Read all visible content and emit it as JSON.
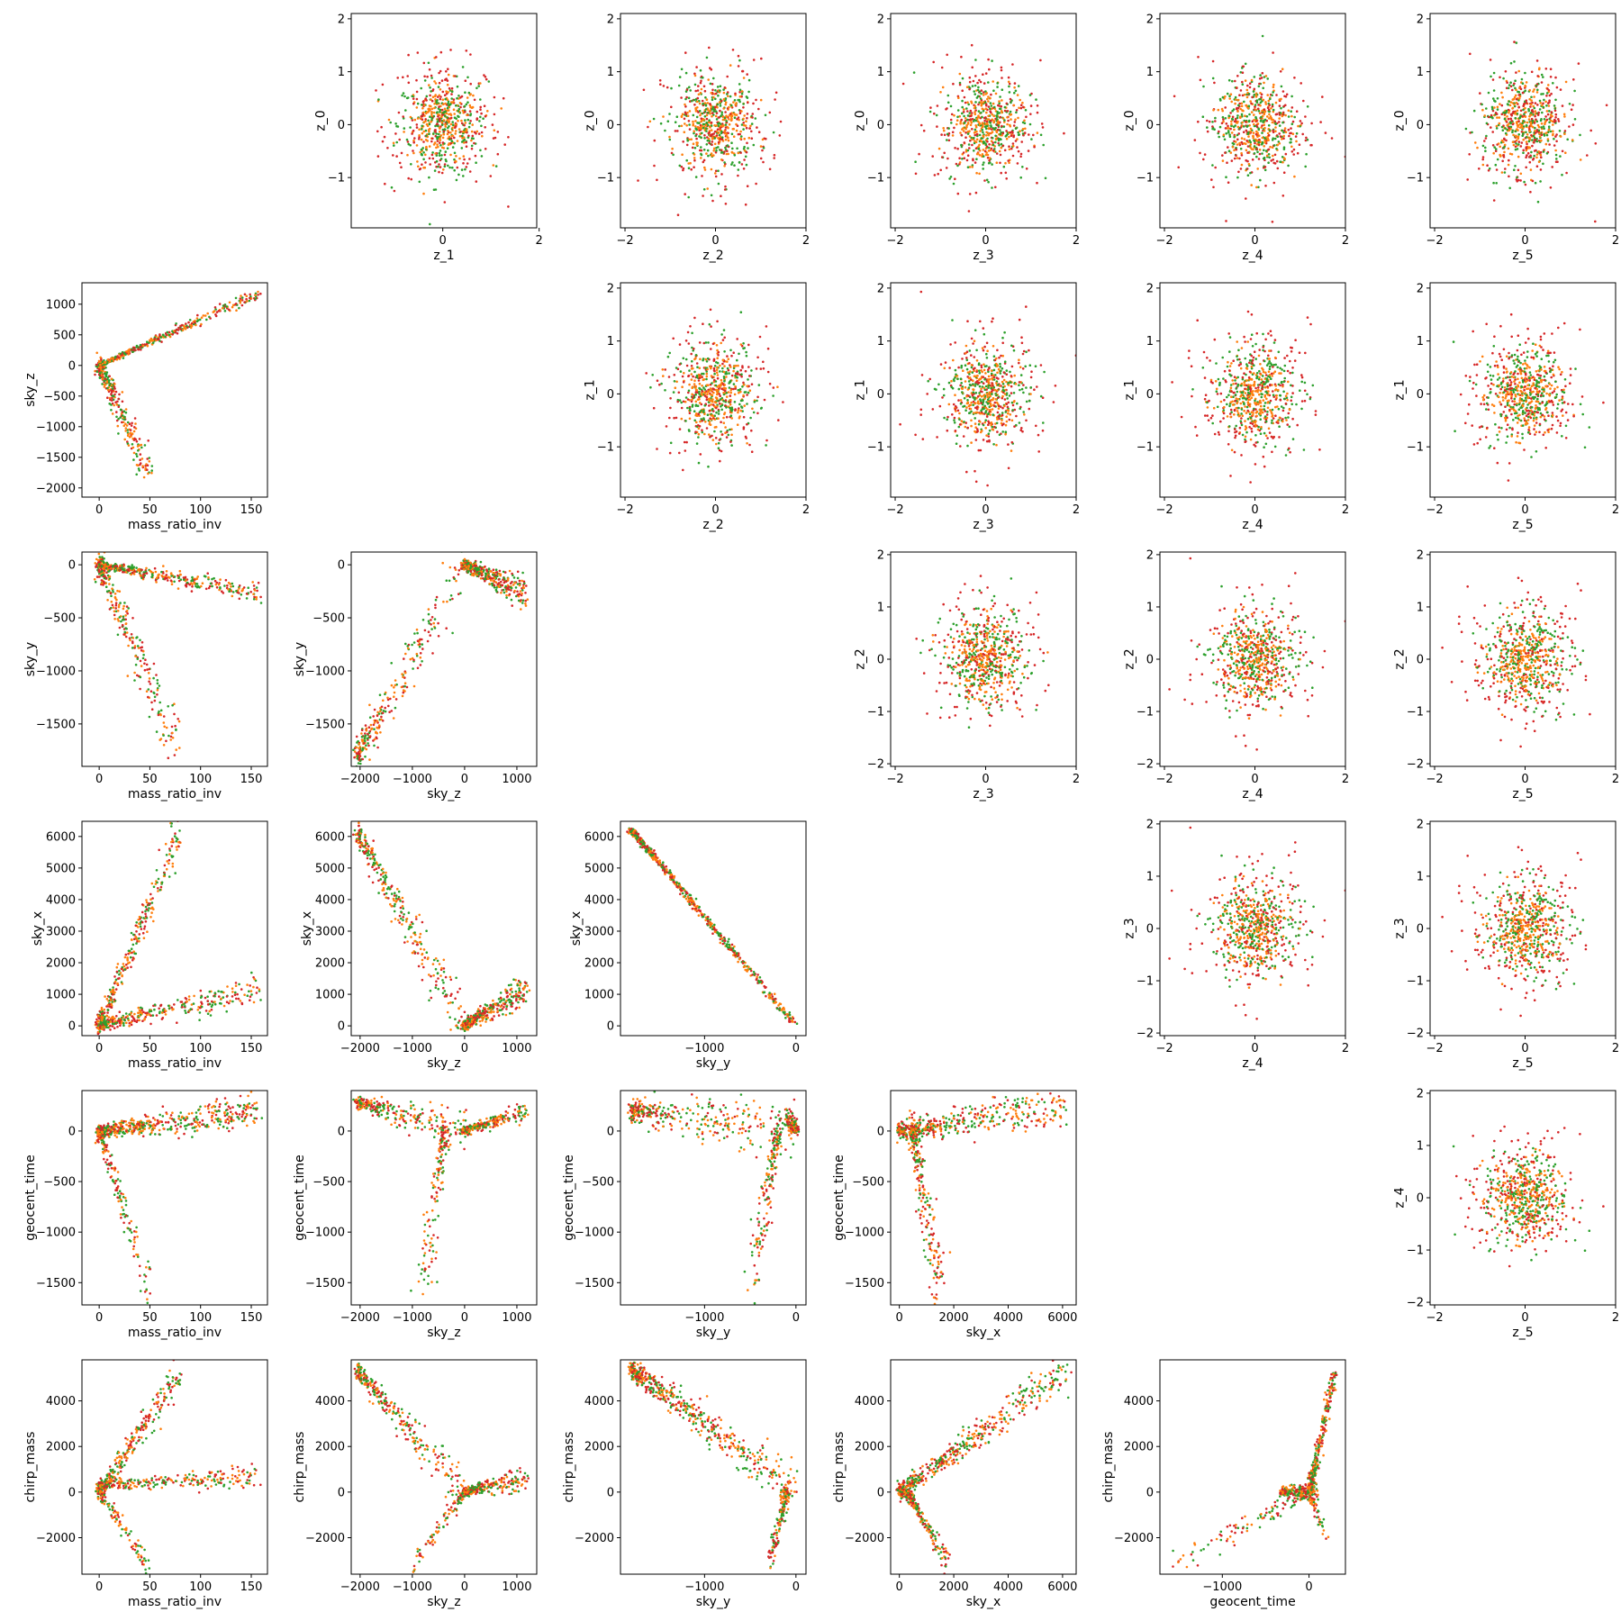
{
  "figure": {
    "type": "pair-scatter-matrix",
    "point_colors": [
      "#2ca02c",
      "#ff7f0e",
      "#d62728"
    ],
    "background": "#ffffff"
  },
  "chart_data": [
    {
      "type": "scatter",
      "row": 0,
      "col": 1,
      "xlabel": "z_1",
      "ylabel": "z_0",
      "xlim": [
        -1.9,
        1.95
      ],
      "ylim": [
        -1.95,
        2.1
      ],
      "xticks": [
        0,
        2
      ],
      "yticks": [
        -1,
        0,
        1,
        2
      ],
      "shape": "gaussian",
      "spread": 0.55
    },
    {
      "type": "scatter",
      "row": 0,
      "col": 2,
      "xlabel": "z_2",
      "ylabel": "z_0",
      "xlim": [
        -2.1,
        2.0
      ],
      "ylim": [
        -1.95,
        2.1
      ],
      "xticks": [
        -2,
        0,
        2
      ],
      "yticks": [
        -1,
        0,
        1,
        2
      ],
      "shape": "gaussian",
      "spread": 0.55
    },
    {
      "type": "scatter",
      "row": 0,
      "col": 3,
      "xlabel": "z_3",
      "ylabel": "z_0",
      "xlim": [
        -2.1,
        2.0
      ],
      "ylim": [
        -1.95,
        2.1
      ],
      "xticks": [
        -2,
        0,
        2
      ],
      "yticks": [
        -1,
        0,
        1,
        2
      ],
      "shape": "gaussian",
      "spread": 0.55
    },
    {
      "type": "scatter",
      "row": 0,
      "col": 4,
      "xlabel": "z_4",
      "ylabel": "z_0",
      "xlim": [
        -2.1,
        2.0
      ],
      "ylim": [
        -1.95,
        2.1
      ],
      "xticks": [
        -2,
        0,
        2
      ],
      "yticks": [
        -1,
        0,
        1,
        2
      ],
      "shape": "gaussian",
      "spread": 0.55
    },
    {
      "type": "scatter",
      "row": 0,
      "col": 5,
      "xlabel": "z_5",
      "ylabel": "z_0",
      "xlim": [
        -2.1,
        2.0
      ],
      "ylim": [
        -1.95,
        2.1
      ],
      "xticks": [
        -2,
        0,
        2
      ],
      "yticks": [
        -1,
        0,
        1,
        2
      ],
      "shape": "gaussian",
      "spread": 0.55
    },
    {
      "type": "scatter",
      "row": 1,
      "col": 0,
      "xlabel": "mass_ratio_inv",
      "ylabel": "sky_z",
      "xlim": [
        -17,
        166
      ],
      "ylim": [
        -2150,
        1350
      ],
      "xticks": [
        0,
        50,
        100,
        150
      ],
      "yticks": [
        -2000,
        -1500,
        -1000,
        -500,
        0,
        500,
        1000
      ],
      "shape": "trend",
      "segments": [
        [
          0,
          0,
          160,
          1200,
          0.55,
          40
        ],
        [
          0,
          0,
          50,
          -1800,
          0.45,
          220
        ]
      ]
    },
    {
      "type": "scatter",
      "row": 1,
      "col": 2,
      "xlabel": "z_2",
      "ylabel": "z_1",
      "xlim": [
        -2.1,
        2.0
      ],
      "ylim": [
        -1.95,
        2.1
      ],
      "xticks": [
        -2,
        0,
        2
      ],
      "yticks": [
        -1,
        0,
        1,
        2
      ],
      "shape": "gaussian",
      "spread": 0.55
    },
    {
      "type": "scatter",
      "row": 1,
      "col": 3,
      "xlabel": "z_3",
      "ylabel": "z_1",
      "xlim": [
        -2.1,
        2.0
      ],
      "ylim": [
        -1.95,
        2.1
      ],
      "xticks": [
        -2,
        0,
        2
      ],
      "yticks": [
        -1,
        0,
        1,
        2
      ],
      "shape": "gaussian",
      "spread": 0.55
    },
    {
      "type": "scatter",
      "row": 1,
      "col": 4,
      "xlabel": "z_4",
      "ylabel": "z_1",
      "xlim": [
        -2.1,
        2.0
      ],
      "ylim": [
        -1.95,
        2.1
      ],
      "xticks": [
        -2,
        0,
        2
      ],
      "yticks": [
        -1,
        0,
        1,
        2
      ],
      "shape": "gaussian",
      "spread": 0.55
    },
    {
      "type": "scatter",
      "row": 1,
      "col": 5,
      "xlabel": "z_5",
      "ylabel": "z_1",
      "xlim": [
        -2.1,
        2.0
      ],
      "ylim": [
        -1.95,
        2.1
      ],
      "xticks": [
        -2,
        0,
        2
      ],
      "yticks": [
        -1,
        0,
        1,
        2
      ],
      "shape": "gaussian",
      "spread": 0.55
    },
    {
      "type": "scatter",
      "row": 2,
      "col": 0,
      "xlabel": "mass_ratio_inv",
      "ylabel": "sky_y",
      "xlim": [
        -17,
        166
      ],
      "ylim": [
        -1900,
        120
      ],
      "xticks": [
        0,
        50,
        100,
        150
      ],
      "yticks": [
        -1500,
        -1000,
        -500,
        0
      ],
      "shape": "trend",
      "segments": [
        [
          0,
          0,
          160,
          -270,
          0.55,
          40
        ],
        [
          0,
          0,
          80,
          -1800,
          0.45,
          200
        ]
      ]
    },
    {
      "type": "scatter",
      "row": 2,
      "col": 1,
      "xlabel": "sky_z",
      "ylabel": "sky_y",
      "xlim": [
        -2170,
        1380
      ],
      "ylim": [
        -1900,
        120
      ],
      "xticks": [
        -2000,
        -1000,
        0,
        1000
      ],
      "yticks": [
        -1500,
        -1000,
        -500,
        0
      ],
      "shape": "trend",
      "segments": [
        [
          -2050,
          -1800,
          0,
          0,
          0.4,
          180
        ],
        [
          0,
          0,
          1200,
          -270,
          0.6,
          60
        ]
      ]
    },
    {
      "type": "scatter",
      "row": 2,
      "col": 3,
      "xlabel": "z_3",
      "ylabel": "z_2",
      "xlim": [
        -2.1,
        2.0
      ],
      "ylim": [
        -2.05,
        2.05
      ],
      "xticks": [
        -2,
        0,
        2
      ],
      "yticks": [
        -2,
        -1,
        0,
        1,
        2
      ],
      "shape": "gaussian",
      "spread": 0.55
    },
    {
      "type": "scatter",
      "row": 2,
      "col": 4,
      "xlabel": "z_4",
      "ylabel": "z_2",
      "xlim": [
        -2.1,
        2.0
      ],
      "ylim": [
        -2.05,
        2.05
      ],
      "xticks": [
        -2,
        0,
        2
      ],
      "yticks": [
        -2,
        -1,
        0,
        1,
        2
      ],
      "shape": "gaussian",
      "spread": 0.55
    },
    {
      "type": "scatter",
      "row": 2,
      "col": 5,
      "xlabel": "z_5",
      "ylabel": "z_2",
      "xlim": [
        -2.1,
        2.0
      ],
      "ylim": [
        -2.05,
        2.05
      ],
      "xticks": [
        -2,
        0,
        2
      ],
      "yticks": [
        -2,
        -1,
        0,
        1,
        2
      ],
      "shape": "gaussian",
      "spread": 0.55
    },
    {
      "type": "scatter",
      "row": 3,
      "col": 0,
      "xlabel": "mass_ratio_inv",
      "ylabel": "sky_x",
      "xlim": [
        -17,
        166
      ],
      "ylim": [
        -310,
        6480
      ],
      "xticks": [
        0,
        50,
        100,
        150
      ],
      "yticks": [
        0,
        1000,
        2000,
        3000,
        4000,
        5000,
        6000
      ],
      "shape": "trend",
      "segments": [
        [
          0,
          0,
          80,
          6200,
          0.45,
          400
        ],
        [
          0,
          0,
          160,
          1200,
          0.55,
          200
        ]
      ]
    },
    {
      "type": "scatter",
      "row": 3,
      "col": 1,
      "xlabel": "sky_z",
      "ylabel": "sky_x",
      "xlim": [
        -2170,
        1380
      ],
      "ylim": [
        -310,
        6480
      ],
      "xticks": [
        -2000,
        -1000,
        0,
        1000
      ],
      "yticks": [
        0,
        1000,
        2000,
        3000,
        4000,
        5000,
        6000
      ],
      "shape": "trend",
      "segments": [
        [
          -2050,
          6100,
          0,
          0,
          0.45,
          500
        ],
        [
          0,
          0,
          1200,
          1200,
          0.55,
          200
        ]
      ]
    },
    {
      "type": "scatter",
      "row": 3,
      "col": 2,
      "xlabel": "sky_y",
      "ylabel": "sky_x",
      "xlim": [
        -1920,
        110
      ],
      "ylim": [
        -310,
        6480
      ],
      "xticks": [
        -1000,
        0
      ],
      "yticks": [
        0,
        1000,
        2000,
        3000,
        4000,
        5000,
        6000
      ],
      "shape": "trend",
      "segments": [
        [
          -1800,
          6200,
          0,
          0,
          1.0,
          60
        ]
      ]
    },
    {
      "type": "scatter",
      "row": 3,
      "col": 4,
      "xlabel": "z_4",
      "ylabel": "z_3",
      "xlim": [
        -2.1,
        2.0
      ],
      "ylim": [
        -2.05,
        2.05
      ],
      "xticks": [
        -2,
        0,
        2
      ],
      "yticks": [
        -2,
        -1,
        0,
        1,
        2
      ],
      "shape": "gaussian",
      "spread": 0.55
    },
    {
      "type": "scatter",
      "row": 3,
      "col": 5,
      "xlabel": "z_5",
      "ylabel": "z_3",
      "xlim": [
        -2.1,
        2.0
      ],
      "ylim": [
        -2.05,
        2.05
      ],
      "xticks": [
        -2,
        0,
        2
      ],
      "yticks": [
        -2,
        -1,
        0,
        1,
        2
      ],
      "shape": "gaussian",
      "spread": 0.55
    },
    {
      "type": "scatter",
      "row": 4,
      "col": 0,
      "xlabel": "mass_ratio_inv",
      "ylabel": "geocent_time",
      "xlim": [
        -17,
        166
      ],
      "ylim": [
        -1720,
        400
      ],
      "xticks": [
        0,
        50,
        100,
        150
      ],
      "yticks": [
        -1500,
        -1000,
        -500,
        0
      ],
      "shape": "trend",
      "segments": [
        [
          0,
          0,
          160,
          200,
          0.7,
          70
        ],
        [
          0,
          0,
          50,
          -1600,
          0.3,
          150
        ]
      ]
    },
    {
      "type": "scatter",
      "row": 4,
      "col": 1,
      "xlabel": "sky_z",
      "ylabel": "geocent_time",
      "xlim": [
        -2170,
        1380
      ],
      "ylim": [
        -1720,
        400
      ],
      "xticks": [
        -2000,
        -1000,
        0,
        1000
      ],
      "yticks": [
        -1500,
        -1000,
        -500,
        0
      ],
      "shape": "trend",
      "segments": [
        [
          -2050,
          280,
          0,
          0,
          0.35,
          80
        ],
        [
          0,
          0,
          1200,
          200,
          0.4,
          40
        ],
        [
          -400,
          0,
          -800,
          -1600,
          0.25,
          250
        ]
      ]
    },
    {
      "type": "scatter",
      "row": 4,
      "col": 2,
      "xlabel": "sky_y",
      "ylabel": "geocent_time",
      "xlim": [
        -1920,
        110
      ],
      "ylim": [
        -1720,
        400
      ],
      "xticks": [
        -1000,
        0
      ],
      "yticks": [
        -1500,
        -1000,
        -500,
        0
      ],
      "shape": "trend",
      "segments": [
        [
          -1800,
          200,
          0,
          0,
          0.5,
          120
        ],
        [
          -200,
          0,
          -500,
          -1600,
          0.3,
          220
        ],
        [
          0,
          0,
          -100,
          150,
          0.2,
          60
        ]
      ]
    },
    {
      "type": "scatter",
      "row": 4,
      "col": 3,
      "xlabel": "sky_x",
      "ylabel": "geocent_time",
      "xlim": [
        -320,
        6500
      ],
      "ylim": [
        -1720,
        400
      ],
      "xticks": [
        0,
        2000,
        4000,
        6000
      ],
      "yticks": [
        -1500,
        -1000,
        -500,
        0
      ],
      "shape": "trend",
      "segments": [
        [
          0,
          0,
          6200,
          250,
          0.65,
          100
        ],
        [
          500,
          0,
          1500,
          -1600,
          0.35,
          250
        ]
      ]
    },
    {
      "type": "scatter",
      "row": 4,
      "col": 5,
      "xlabel": "z_5",
      "ylabel": "z_4",
      "xlim": [
        -2.1,
        2.0
      ],
      "ylim": [
        -2.05,
        2.05
      ],
      "xticks": [
        -2,
        0,
        2
      ],
      "yticks": [
        -2,
        -1,
        0,
        1,
        2
      ],
      "shape": "gaussian",
      "spread": 0.55
    },
    {
      "type": "scatter",
      "row": 5,
      "col": 0,
      "xlabel": "mass_ratio_inv",
      "ylabel": "chirp_mass",
      "xlim": [
        -17,
        166
      ],
      "ylim": [
        -3600,
        5800
      ],
      "xticks": [
        0,
        50,
        100,
        150
      ],
      "yticks": [
        -2000,
        0,
        2000,
        4000
      ],
      "shape": "trend",
      "segments": [
        [
          0,
          0,
          80,
          5300,
          0.4,
          400
        ],
        [
          0,
          300,
          160,
          700,
          0.45,
          200
        ],
        [
          0,
          0,
          50,
          -3300,
          0.15,
          300
        ]
      ]
    },
    {
      "type": "scatter",
      "row": 5,
      "col": 1,
      "xlabel": "sky_z",
      "ylabel": "chirp_mass",
      "xlim": [
        -2170,
        1380
      ],
      "ylim": [
        -3600,
        5800
      ],
      "xticks": [
        -2000,
        -1000,
        0,
        1000
      ],
      "yticks": [
        -2000,
        0,
        2000,
        4000
      ],
      "shape": "trend",
      "segments": [
        [
          -2050,
          5300,
          0,
          0,
          0.45,
          500
        ],
        [
          0,
          0,
          1200,
          600,
          0.4,
          200
        ],
        [
          0,
          0,
          -1000,
          -3300,
          0.15,
          300
        ]
      ]
    },
    {
      "type": "scatter",
      "row": 5,
      "col": 2,
      "xlabel": "sky_y",
      "ylabel": "chirp_mass",
      "xlim": [
        -1920,
        110
      ],
      "ylim": [
        -3600,
        5800
      ],
      "xticks": [
        -1000,
        0
      ],
      "yticks": [
        -2000,
        0,
        2000,
        4000
      ],
      "shape": "trend",
      "segments": [
        [
          -1800,
          5400,
          0,
          0,
          0.75,
          500
        ],
        [
          -100,
          0,
          -300,
          -3300,
          0.25,
          300
        ]
      ]
    },
    {
      "type": "scatter",
      "row": 5,
      "col": 3,
      "xlabel": "sky_x",
      "ylabel": "chirp_mass",
      "xlim": [
        -320,
        6500
      ],
      "ylim": [
        -3600,
        5800
      ],
      "xticks": [
        0,
        2000,
        4000,
        6000
      ],
      "yticks": [
        -2000,
        0,
        2000,
        4000
      ],
      "shape": "trend",
      "segments": [
        [
          0,
          0,
          6200,
          5400,
          0.7,
          400
        ],
        [
          300,
          0,
          1800,
          -3200,
          0.3,
          300
        ]
      ]
    },
    {
      "type": "scatter",
      "row": 5,
      "col": 4,
      "xlabel": "geocent_time",
      "ylabel": "chirp_mass",
      "xlim": [
        -1720,
        420
      ],
      "ylim": [
        -3600,
        5800
      ],
      "xticks": [
        -1000,
        0
      ],
      "yticks": [
        -2000,
        0,
        2000,
        4000
      ],
      "shape": "trend",
      "segments": [
        [
          0,
          0,
          300,
          5300,
          0.45,
          80
        ],
        [
          0,
          0,
          -1600,
          -3300,
          0.15,
          300
        ],
        [
          -300,
          0,
          100,
          0,
          0.3,
          200
        ],
        [
          0,
          0,
          200,
          -2000,
          0.1,
          60
        ]
      ]
    }
  ]
}
